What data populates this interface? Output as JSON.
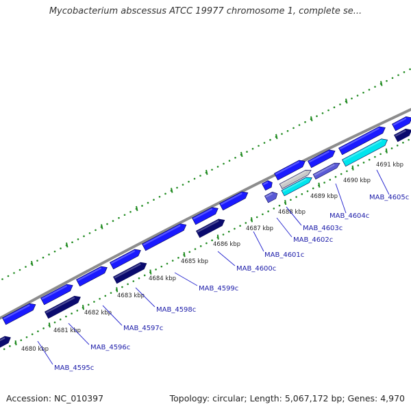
{
  "title": "Mycobacterium abscessus ATCC 19977 chromosome 1, complete se...",
  "footer": {
    "accession": "Accession: NC_010397",
    "summary": "Topology: circular; Length: 5,067,172 bp; Genes: 4,970"
  },
  "colors": {
    "backbone": "#8c8c8c",
    "forward_gene": "#1a1aff",
    "reverse_gene": "#0a0a6e",
    "highlight_gene": "#00e5ee",
    "light_gene": "#c8c8c8",
    "violet_gene": "#5a5ad6",
    "tick": "#1f8a1f",
    "gene_label": "#1a1aa8"
  },
  "kbp_ticks": [
    "4680 kbp",
    "4681 kbp",
    "4682 kbp",
    "4683 kbp",
    "4684 kbp",
    "4685 kbp",
    "4686 kbp",
    "4687 kbp",
    "4688 kbp",
    "4689 kbp",
    "4690 kbp",
    "4691 kbp"
  ],
  "gene_labels": [
    "MAB_4595c",
    "MAB_4596c",
    "MAB_4597c",
    "MAB_4598c",
    "MAB_4599c",
    "MAB_4600c",
    "MAB_4601c",
    "MAB_4602c",
    "MAB_4603c",
    "MAB_4604c",
    "MAB_4605c"
  ]
}
